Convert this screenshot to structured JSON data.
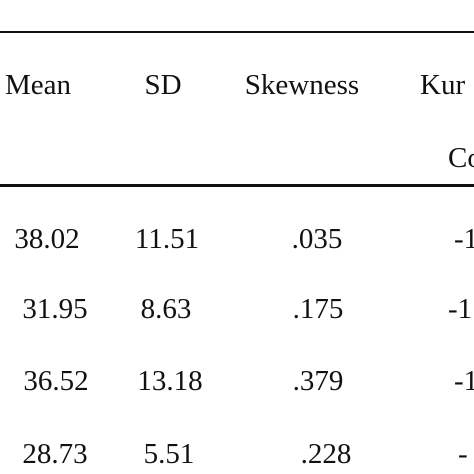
{
  "table": {
    "headers": [
      "Mean",
      "SD",
      "Skewness",
      "Kur"
    ],
    "subheaders": [
      "",
      "",
      "",
      "Co"
    ],
    "rows": [
      [
        "38.02",
        "11.51",
        ".035",
        "-1"
      ],
      [
        "31.95",
        "8.63",
        ".175",
        "-1"
      ],
      [
        "36.52",
        "13.18",
        ".379",
        "-1"
      ],
      [
        "28.73",
        "5.51",
        ".228",
        "-"
      ]
    ]
  }
}
